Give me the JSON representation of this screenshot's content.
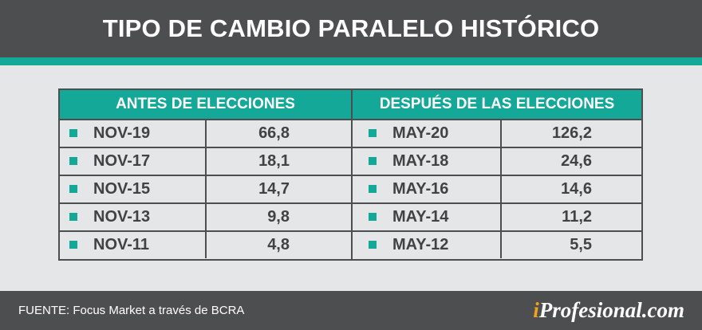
{
  "header": {
    "title": "TIPO DE CAMBIO PARALELO HISTÓRICO"
  },
  "colors": {
    "accent": "#14a898",
    "dark": "#4d4e4f",
    "background": "#e4e6e7",
    "text": "#414243",
    "brand_dot": "#f2a21c"
  },
  "chart_data": {
    "type": "table",
    "title": "TIPO DE CAMBIO PARALELO HISTÓRICO",
    "groups": [
      {
        "header": "ANTES DE ELECCIONES",
        "rows": [
          {
            "label": "NOV-19",
            "value": "66,8"
          },
          {
            "label": "NOV-17",
            "value": "18,1"
          },
          {
            "label": "NOV-15",
            "value": "14,7"
          },
          {
            "label": "NOV-13",
            "value": "9,8"
          },
          {
            "label": "NOV-11",
            "value": "4,8"
          }
        ]
      },
      {
        "header": "DESPUÉS DE LAS ELECCIONES",
        "rows": [
          {
            "label": "MAY-20",
            "value": "126,2"
          },
          {
            "label": "MAY-18",
            "value": "24,6"
          },
          {
            "label": "MAY-16",
            "value": "14,6"
          },
          {
            "label": "MAY-14",
            "value": "11,2"
          },
          {
            "label": "MAY-12",
            "value": "5,5"
          }
        ]
      }
    ]
  },
  "footer": {
    "source": "FUENTE: Focus Market a través de BCRA",
    "brand_prefix": "i",
    "brand_name": "Profesional",
    "brand_suffix": ".com"
  }
}
